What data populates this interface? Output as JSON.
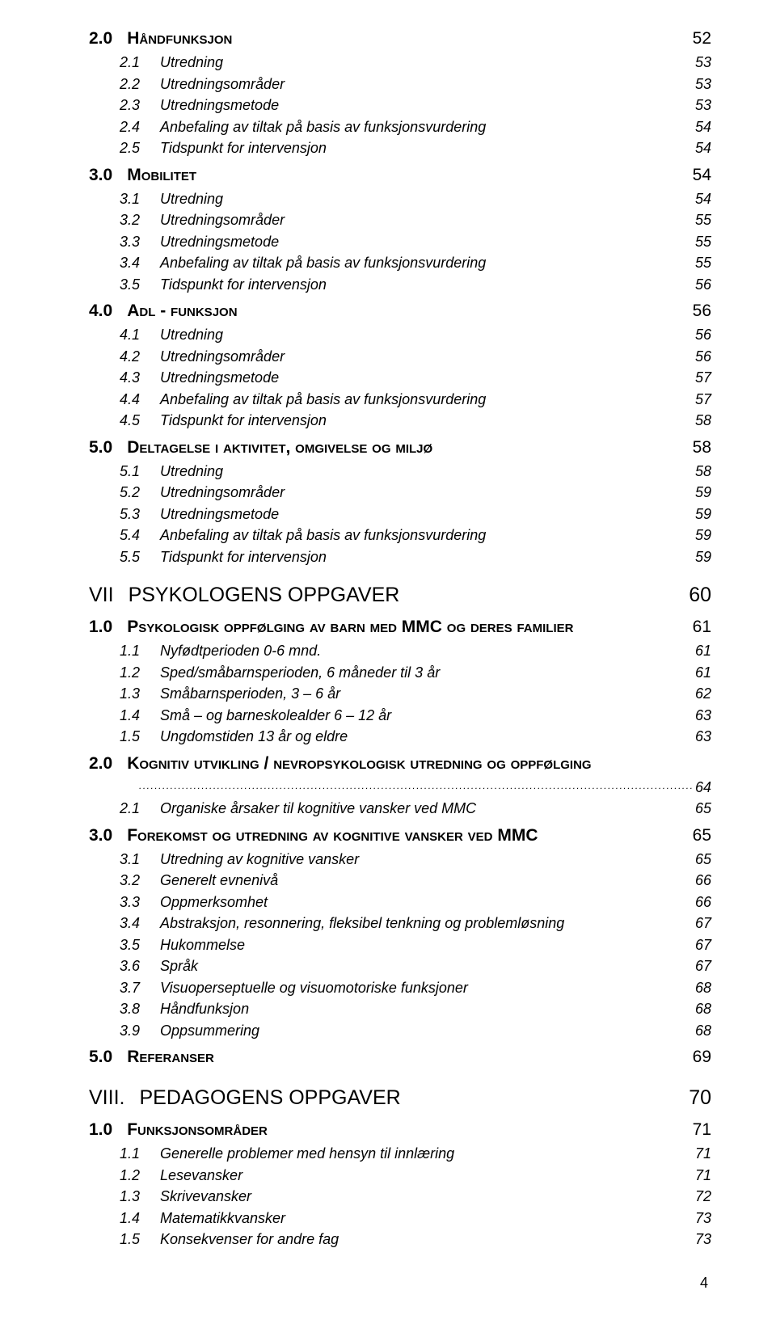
{
  "toc": [
    {
      "level": 1,
      "num": "2.0",
      "label": "Håndfunksjon",
      "page": "52"
    },
    {
      "level": 2,
      "num": "2.1",
      "label": "Utredning",
      "page": "53"
    },
    {
      "level": 2,
      "num": "2.2",
      "label": "Utredningsområder",
      "page": "53"
    },
    {
      "level": 2,
      "num": "2.3",
      "label": "Utredningsmetode",
      "page": "53"
    },
    {
      "level": 2,
      "num": "2.4",
      "label": "Anbefaling av tiltak på basis av funksjonsvurdering",
      "page": "54"
    },
    {
      "level": 2,
      "num": "2.5",
      "label": "Tidspunkt for intervensjon",
      "page": "54"
    },
    {
      "level": 1,
      "num": "3.0",
      "label": "Mobilitet",
      "page": "54"
    },
    {
      "level": 2,
      "num": "3.1",
      "label": "Utredning",
      "page": "54"
    },
    {
      "level": 2,
      "num": "3.2",
      "label": "Utredningsområder",
      "page": "55"
    },
    {
      "level": 2,
      "num": "3.3",
      "label": "Utredningsmetode",
      "page": "55"
    },
    {
      "level": 2,
      "num": "3.4",
      "label": "Anbefaling av tiltak på basis av funksjonsvurdering",
      "page": "55"
    },
    {
      "level": 2,
      "num": "3.5",
      "label": "Tidspunkt for intervensjon",
      "page": "56"
    },
    {
      "level": 1,
      "num": "4.0",
      "label": "Adl - funksjon",
      "page": "56"
    },
    {
      "level": 2,
      "num": "4.1",
      "label": "Utredning",
      "page": "56"
    },
    {
      "level": 2,
      "num": "4.2",
      "label": "Utredningsområder",
      "page": "56"
    },
    {
      "level": 2,
      "num": "4.3",
      "label": "Utredningsmetode",
      "page": "57"
    },
    {
      "level": 2,
      "num": "4.4",
      "label": "Anbefaling av tiltak på basis av funksjonsvurdering",
      "page": "57"
    },
    {
      "level": 2,
      "num": "4.5",
      "label": "Tidspunkt for intervensjon",
      "page": "58"
    },
    {
      "level": 1,
      "num": "5.0",
      "label": "Deltagelse i aktivitet, omgivelse og miljø",
      "page": "58"
    },
    {
      "level": 2,
      "num": "5.1",
      "label": "Utredning",
      "page": "58"
    },
    {
      "level": 2,
      "num": "5.2",
      "label": "Utredningsområder",
      "page": "59"
    },
    {
      "level": 2,
      "num": "5.3",
      "label": "Utredningsmetode",
      "page": "59"
    },
    {
      "level": 2,
      "num": "5.4",
      "label": "Anbefaling av tiltak på basis av funksjonsvurdering",
      "page": "59"
    },
    {
      "level": 2,
      "num": "5.5",
      "label": "Tidspunkt for intervensjon",
      "page": "59"
    },
    {
      "level": 0,
      "num": "VII",
      "label": "PSYKOLOGENS OPPGAVER",
      "page": "60"
    },
    {
      "level": 1,
      "num": "1.0",
      "label": "Psykologisk oppfølging av barn med MMC og deres familier",
      "page": "61"
    },
    {
      "level": 2,
      "num": "1.1",
      "label": "Nyfødtperioden  0-6 mnd.",
      "page": "61"
    },
    {
      "level": 2,
      "num": "1.2",
      "label": "Sped/småbarnsperioden, 6 måneder til 3 år",
      "page": "61"
    },
    {
      "level": 2,
      "num": "1.3",
      "label": "Småbarnsperioden, 3 – 6 år",
      "page": "62"
    },
    {
      "level": 2,
      "num": "1.4",
      "label": "Små – og barneskolealder   6 – 12 år",
      "page": "63"
    },
    {
      "level": 2,
      "num": "1.5",
      "label": "Ungdomstiden   13 år og eldre",
      "page": "63"
    },
    {
      "level": 1,
      "num": "2.0",
      "label": "Kognitiv utvikling / nevropsykologisk utredning og oppfølging",
      "page": ""
    },
    {
      "level": "standalone",
      "page": "64"
    },
    {
      "level": 2,
      "num": "2.1",
      "label": "Organiske årsaker til kognitive vansker ved MMC",
      "page": "65"
    },
    {
      "level": 1,
      "num": "3.0",
      "label": "Forekomst og utredning av kognitive vansker ved MMC",
      "page": "65"
    },
    {
      "level": 2,
      "num": "3.1",
      "label": "Utredning av kognitive vansker",
      "page": "65"
    },
    {
      "level": 2,
      "num": "3.2",
      "label": "Generelt evnenivå",
      "page": "66"
    },
    {
      "level": 2,
      "num": "3.3",
      "label": "Oppmerksomhet",
      "page": "66"
    },
    {
      "level": 2,
      "num": "3.4",
      "label": "Abstraksjon, resonnering,  fleksibel tenkning og problemløsning",
      "page": "67"
    },
    {
      "level": 2,
      "num": "3.5",
      "label": "Hukommelse",
      "page": "67"
    },
    {
      "level": 2,
      "num": "3.6",
      "label": "Språk",
      "page": "67"
    },
    {
      "level": 2,
      "num": "3.7",
      "label": "Visuoperseptuelle og visuomotoriske funksjoner",
      "page": "68"
    },
    {
      "level": 2,
      "num": "3.8",
      "label": "Håndfunksjon",
      "page": "68"
    },
    {
      "level": 2,
      "num": "3.9",
      "label": "Oppsummering",
      "page": "68"
    },
    {
      "level": 1,
      "num": "5.0",
      "label": "Referanser",
      "page": "69"
    },
    {
      "level": 0,
      "num": "VIII.",
      "label": "PEDAGOGENS OPPGAVER",
      "page": "70"
    },
    {
      "level": 1,
      "num": "1.0",
      "label": "Funksjonsområder",
      "page": "71"
    },
    {
      "level": 2,
      "num": "1.1",
      "label": "Generelle problemer med hensyn til innlæring",
      "page": "71"
    },
    {
      "level": 2,
      "num": "1.2",
      "label": "Lesevansker",
      "page": "71"
    },
    {
      "level": 2,
      "num": "1.3",
      "label": "Skrivevansker",
      "page": "72"
    },
    {
      "level": 2,
      "num": "1.4",
      "label": "Matematikkvansker",
      "page": "73"
    },
    {
      "level": 2,
      "num": "1.5",
      "label": "Konsekvenser for andre fag",
      "page": "73"
    }
  ],
  "page_number": "4"
}
